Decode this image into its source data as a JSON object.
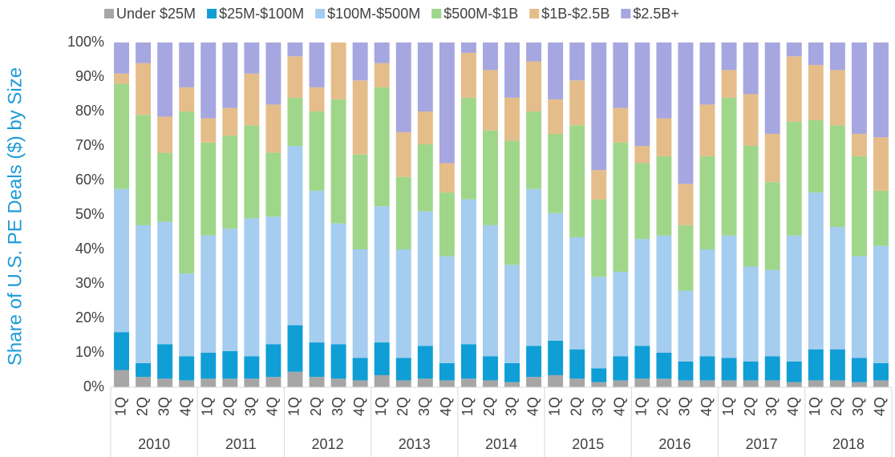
{
  "chart_data": {
    "type": "stacked_bar",
    "y_axis_label": "Share of U.S. PE Deals ($) by Size",
    "categories": [
      "1Q",
      "2Q",
      "3Q",
      "4Q",
      "1Q",
      "2Q",
      "3Q",
      "4Q",
      "1Q",
      "2Q",
      "3Q",
      "4Q",
      "1Q",
      "2Q",
      "3Q",
      "4Q",
      "1Q",
      "2Q",
      "3Q",
      "4Q",
      "1Q",
      "2Q",
      "3Q",
      "4Q",
      "1Q",
      "2Q",
      "3Q",
      "4Q",
      "1Q",
      "2Q",
      "3Q",
      "4Q",
      "1Q",
      "2Q",
      "3Q",
      "4Q"
    ],
    "years": [
      "2010",
      "2011",
      "2012",
      "2013",
      "2014",
      "2015",
      "2016",
      "2017",
      "2018"
    ],
    "ylim": [
      0,
      100
    ],
    "yticks": [
      {
        "value": 0,
        "label": "0%"
      },
      {
        "value": 10,
        "label": "10%"
      },
      {
        "value": 20,
        "label": "20%"
      },
      {
        "value": 30,
        "label": "30%"
      },
      {
        "value": 40,
        "label": "40%"
      },
      {
        "value": 50,
        "label": "50%"
      },
      {
        "value": 60,
        "label": "60%"
      },
      {
        "value": 70,
        "label": "70%"
      },
      {
        "value": 80,
        "label": "80%"
      },
      {
        "value": 90,
        "label": "90%"
      },
      {
        "value": 100,
        "label": "100%"
      }
    ],
    "legend": "top",
    "series": [
      {
        "name": "Under $25M",
        "color": "#a6a6a6",
        "values": [
          5,
          3,
          2.5,
          2,
          2.5,
          2.5,
          2.5,
          3,
          4.5,
          3,
          2.5,
          2,
          3.5,
          2,
          2.5,
          2,
          2.5,
          2,
          1.5,
          3,
          3.5,
          2.5,
          1.5,
          2,
          2.5,
          2.5,
          2,
          2,
          2,
          2,
          2,
          1.5,
          2,
          2,
          1.5,
          2
        ]
      },
      {
        "name": "$25M-$100M",
        "color": "#0f9ed5",
        "values": [
          11,
          4,
          10,
          7,
          7.5,
          8,
          6.5,
          9.5,
          13.5,
          10,
          10,
          6.5,
          9.5,
          6.5,
          9.5,
          5,
          10,
          7,
          5.5,
          9,
          10,
          8.5,
          4,
          7,
          9.5,
          7.5,
          5.5,
          7,
          6.5,
          5.5,
          7,
          6,
          9,
          9,
          7,
          5
        ]
      },
      {
        "name": "$100M-$500M",
        "color": "#a4cdf0",
        "values": [
          41.5,
          40,
          35.5,
          24,
          34,
          35.5,
          40,
          37,
          52,
          44,
          35,
          31.5,
          39.5,
          31.5,
          39,
          31,
          42,
          38,
          28.5,
          45.5,
          37,
          32.5,
          26.5,
          24.5,
          31,
          34,
          20.5,
          31,
          35.5,
          27.5,
          25,
          36.5,
          45.5,
          35.5,
          29.5,
          34
        ]
      },
      {
        "name": "$500M-$1B",
        "color": "#a0d68a",
        "values": [
          30.5,
          32,
          20,
          47,
          27,
          27,
          27,
          18.5,
          14,
          23,
          36,
          27.5,
          34.5,
          21,
          19.5,
          18.5,
          29.5,
          27.5,
          36,
          22.5,
          23,
          32.5,
          22.5,
          37.5,
          22,
          23,
          19,
          27,
          40,
          35,
          25.5,
          33,
          21,
          29.5,
          29,
          16
        ]
      },
      {
        "name": "$1B-$2.5B",
        "color": "#e5bd8a",
        "values": [
          3,
          15,
          10.5,
          7,
          7,
          8,
          15,
          14,
          12,
          7,
          16.5,
          21.5,
          7,
          13,
          9.5,
          8.5,
          13,
          17.5,
          12.5,
          14.5,
          10,
          13,
          8.5,
          10,
          5,
          11,
          12,
          15,
          8,
          15,
          14,
          19,
          16,
          16,
          6.5,
          15.5
        ]
      },
      {
        "name": "$2.5B+",
        "color": "#a6a6e0",
        "values": [
          9,
          6,
          21.5,
          13,
          22,
          19,
          9,
          18,
          4,
          13,
          0,
          11,
          6,
          26,
          20,
          35,
          3,
          8,
          16,
          5.5,
          16.5,
          11,
          37,
          19,
          30,
          22,
          41,
          18,
          8,
          15,
          26.5,
          4,
          6.5,
          8,
          26.5,
          27.5
        ]
      }
    ]
  }
}
